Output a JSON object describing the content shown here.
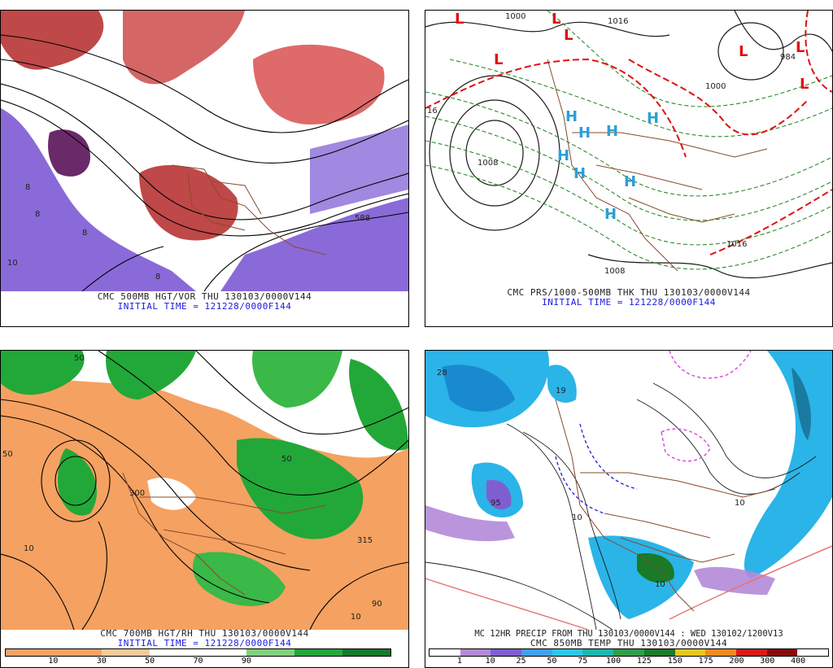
{
  "colors": {
    "purple": "#8a6ad8",
    "vort_red": "#b42828",
    "rh_orange": "#f5a161",
    "rh_green": "#22a838",
    "snow_blue": "#2ab4e8",
    "low_red": "#e01010",
    "high_cyan": "#2aa0d8"
  },
  "panels": {
    "top_left": {
      "caption1": "CMC 500MB HGT/VOR THU 130103/0000V144",
      "caption2": "INITIAL TIME = 121228/0000F144",
      "contour_labels": [
        "8",
        "8",
        "8",
        "10",
        "588",
        "8"
      ]
    },
    "top_right": {
      "caption1": "CMC PRS/1000-500MB THK THU 130103/0000V144",
      "caption2": "INITIAL TIME = 121228/0000F144",
      "contour_labels": [
        "1000",
        "1008",
        "1016",
        "1008",
        "1000",
        "984",
        "1016",
        "16"
      ],
      "lows": [
        "L",
        "L",
        "L",
        "L",
        "L",
        "L",
        "L"
      ],
      "highs": [
        "H",
        "H",
        "H",
        "H",
        "H",
        "H",
        "H",
        "H"
      ]
    },
    "bottom_left": {
      "caption1": "CMC 700MB HGT/RH THU 130103/0000V144",
      "caption2": "INITIAL TIME = 121228/0000F144",
      "contour_labels": [
        "50",
        "50",
        "300",
        "315",
        "10",
        "10",
        "90",
        "50"
      ],
      "scale_labels": [
        "10",
        "30",
        "50",
        "70",
        "90"
      ],
      "scale_colors": [
        "#f5a161",
        "#f5a161",
        "#f9c99a",
        "#ffffff",
        "#ffffff",
        "#7fd27a",
        "#22a838",
        "#157a2b"
      ]
    },
    "bottom_right": {
      "caption1": "MC 12HR PRECIP FROM THU 130103/0000V144 : WED 130102/1200V13",
      "caption2": "CMC 850MB TEMP THU 130103/0000V144",
      "contour_labels": [
        "28",
        "19",
        "95",
        "10",
        "10",
        "10"
      ],
      "scale_labels": [
        "1",
        "10",
        "25",
        "50",
        "75",
        "100",
        "125",
        "150",
        "175",
        "200",
        "300",
        "400"
      ],
      "scale_colors": [
        "#ffffff",
        "#b48ad8",
        "#7f5fd0",
        "#3fa0f0",
        "#2ac8e8",
        "#1ab8b0",
        "#2e9f48",
        "#1a7a28",
        "#e8c81a",
        "#f08a1a",
        "#d81a1a",
        "#8a0a0a",
        "#ffffff"
      ]
    }
  }
}
